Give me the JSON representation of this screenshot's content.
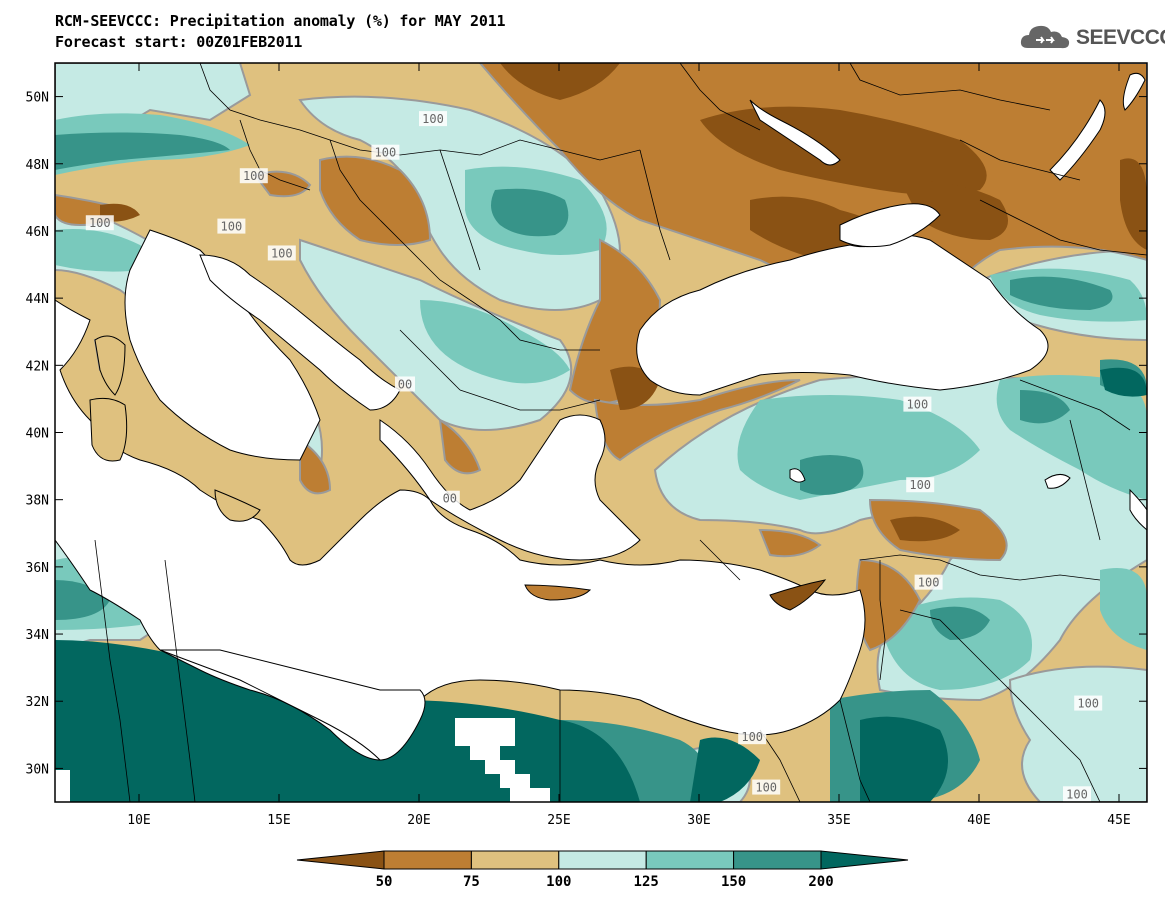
{
  "header": {
    "title": "RCM-SEEVCCC: Precipitation anomaly (%) for MAY 2011",
    "subtitle": "Forecast start: 00Z01FEB2011"
  },
  "logo": {
    "text": "SEEVCCC",
    "icon": "cloud-icon"
  },
  "map": {
    "lon_range": [
      7,
      46
    ],
    "lat_range": [
      29,
      51
    ],
    "lat_ticks": [
      {
        "value": 50,
        "label": "50N"
      },
      {
        "value": 48,
        "label": "48N"
      },
      {
        "value": 46,
        "label": "46N"
      },
      {
        "value": 44,
        "label": "44N"
      },
      {
        "value": 42,
        "label": "42N"
      },
      {
        "value": 40,
        "label": "40N"
      },
      {
        "value": 38,
        "label": "38N"
      },
      {
        "value": 36,
        "label": "36N"
      },
      {
        "value": 34,
        "label": "34N"
      },
      {
        "value": 32,
        "label": "32N"
      },
      {
        "value": 30,
        "label": "30N"
      }
    ],
    "lon_ticks": [
      {
        "value": 10,
        "label": "10E"
      },
      {
        "value": 15,
        "label": "15E"
      },
      {
        "value": 20,
        "label": "20E"
      },
      {
        "value": 25,
        "label": "25E"
      },
      {
        "value": 30,
        "label": "30E"
      },
      {
        "value": 35,
        "label": "35E"
      },
      {
        "value": 40,
        "label": "40E"
      },
      {
        "value": 45,
        "label": "45E"
      }
    ],
    "contour_labels": [
      {
        "text": "100",
        "lon": 20.5,
        "lat": 49.3
      },
      {
        "text": "100",
        "lon": 18.8,
        "lat": 48.3
      },
      {
        "text": "100",
        "lon": 14.1,
        "lat": 47.6
      },
      {
        "text": "100",
        "lon": 8.6,
        "lat": 46.2
      },
      {
        "text": "100",
        "lon": 13.3,
        "lat": 46.1
      },
      {
        "text": "100",
        "lon": 15.1,
        "lat": 45.3
      },
      {
        "text": "00",
        "lon": 19.5,
        "lat": 41.4
      },
      {
        "text": "00",
        "lon": 21.1,
        "lat": 38.0
      },
      {
        "text": "100",
        "lon": 37.8,
        "lat": 40.8
      },
      {
        "text": "100",
        "lon": 37.9,
        "lat": 38.4
      },
      {
        "text": "100",
        "lon": 38.2,
        "lat": 35.5
      },
      {
        "text": "100",
        "lon": 43.9,
        "lat": 31.9
      },
      {
        "text": "100",
        "lon": 31.9,
        "lat": 30.9
      },
      {
        "text": "100",
        "lon": 32.4,
        "lat": 29.4
      },
      {
        "text": "100",
        "lon": 43.5,
        "lat": 29.2
      }
    ]
  },
  "colorbar": {
    "levels": [
      "50",
      "75",
      "100",
      "125",
      "150",
      "200"
    ],
    "colors": {
      "below_50": "#8a5214",
      "50_75": "#bd7e33",
      "75_100": "#dfc17f",
      "100_125": "#c5eae4",
      "125_150": "#79c9bc",
      "150_200": "#379489",
      "above_200": "#02675f"
    }
  },
  "colors": {
    "sea": "#ffffff",
    "contour_line": "#9a9a9a",
    "border": "#000000"
  }
}
